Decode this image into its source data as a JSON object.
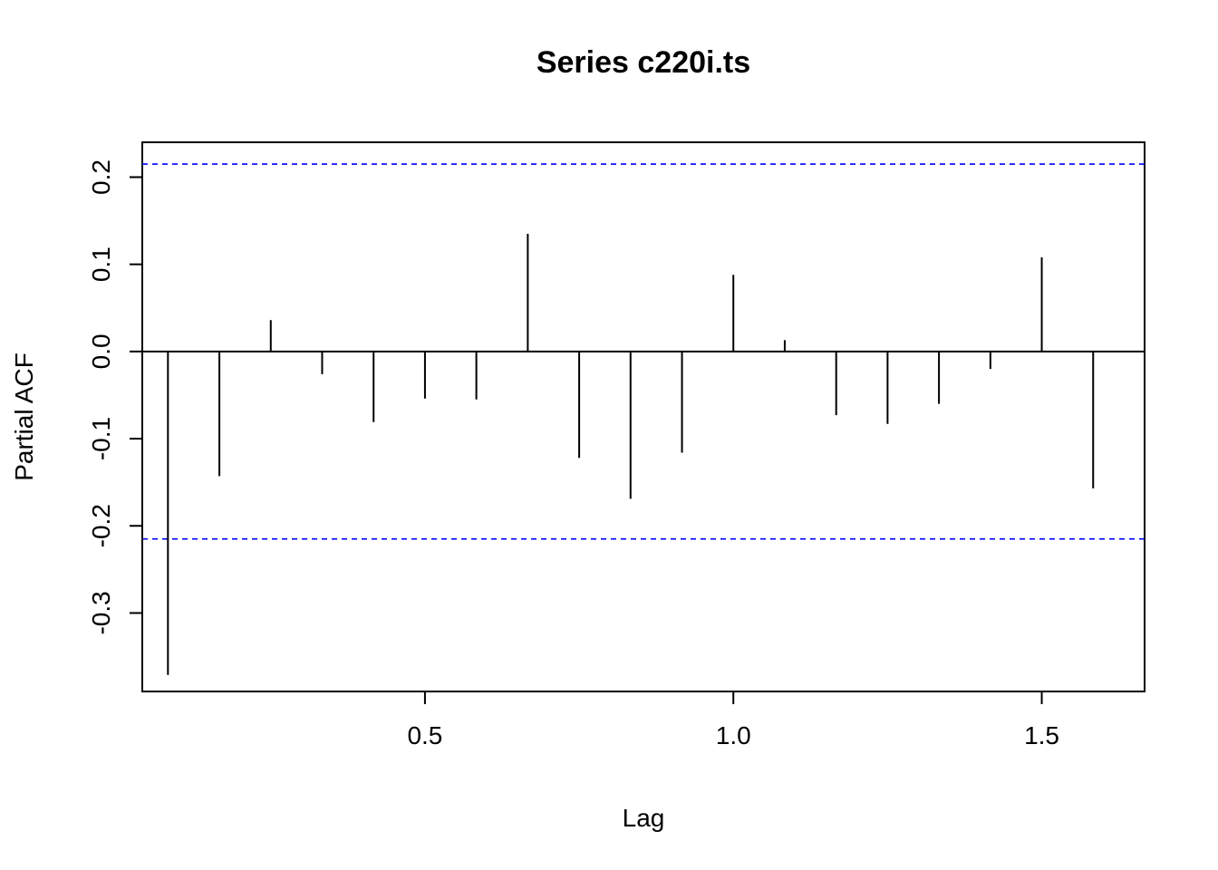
{
  "chart_data": {
    "type": "bar",
    "title": "Series  c220i.ts",
    "xlabel": "Lag",
    "ylabel": "Partial ACF",
    "xlim": [
      0.0417,
      1.6667
    ],
    "ylim": [
      -0.39,
      0.24
    ],
    "x_ticks": [
      "0.5",
      "1.0",
      "1.5"
    ],
    "x_tick_values": [
      0.5,
      1.0,
      1.5
    ],
    "y_ticks": [
      "-0.3",
      "-0.2",
      "-0.1",
      "0.0",
      "0.1",
      "0.2"
    ],
    "y_tick_values": [
      -0.3,
      -0.2,
      -0.1,
      0.0,
      0.1,
      0.2
    ],
    "lags": [
      0.0833,
      0.1667,
      0.25,
      0.3333,
      0.4167,
      0.5,
      0.5833,
      0.6667,
      0.75,
      0.8333,
      0.9167,
      1.0,
      1.0833,
      1.1667,
      1.25,
      1.3333,
      1.4167,
      1.5,
      1.5833
    ],
    "values": [
      -0.371,
      -0.143,
      0.036,
      -0.026,
      -0.081,
      -0.054,
      -0.055,
      0.135,
      -0.122,
      -0.169,
      -0.116,
      0.088,
      0.013,
      -0.073,
      -0.083,
      -0.06,
      -0.02,
      0.108,
      -0.157
    ],
    "confidence_bound": 0.215,
    "confidence_color": "#0000ff",
    "bar_color": "#000000"
  }
}
